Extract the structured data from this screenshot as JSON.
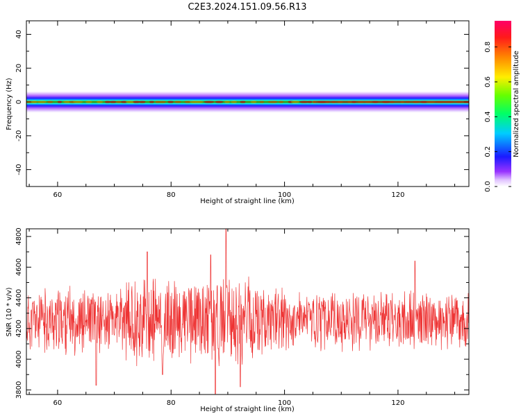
{
  "title": "C2E3.2024.151.09.56.R13",
  "colors": {
    "snr_line": "#ee3333",
    "axes": "#000000"
  },
  "chart_data": [
    {
      "type": "heatmap",
      "xlabel": "Height of straight line (km)",
      "ylabel": "Frequency (Hz)",
      "xlim": [
        54.5,
        132.5
      ],
      "ylim": [
        -50,
        48
      ],
      "x_ticks": [
        60,
        80,
        100,
        120
      ],
      "y_ticks": [
        -40,
        -20,
        0,
        20,
        40
      ],
      "band": {
        "center_hz": 0,
        "halfwidth_hz": 3,
        "peak_hz": 0
      },
      "colorbar": {
        "label": "Normalized spectral amplitude",
        "range": [
          0.0,
          0.95
        ],
        "ticks": [
          0.0,
          0.2,
          0.4,
          0.6,
          0.8
        ],
        "tick_labels": [
          "0.0",
          "0.2",
          "0.4",
          "0.6",
          "0.8"
        ],
        "colormap": "rainbow"
      }
    },
    {
      "type": "line",
      "xlabel": "Height of straight line (km)",
      "ylabel": "SNR (10 * v/v)",
      "xlim": [
        54.5,
        132.5
      ],
      "ylim": [
        3770,
        4850
      ],
      "x_ticks": [
        60,
        80,
        100,
        120
      ],
      "y_ticks": [
        3800,
        4000,
        4200,
        4400,
        4600,
        4800
      ],
      "series": [
        {
          "base_level": 4250,
          "noise_amplitude": 180,
          "spikes": [
            {
              "x": 66.8,
              "y": 3830
            },
            {
              "x": 75.8,
              "y": 4700
            },
            {
              "x": 78.5,
              "y": 3900
            },
            {
              "x": 87.0,
              "y": 4680
            },
            {
              "x": 87.8,
              "y": 3775
            },
            {
              "x": 89.7,
              "y": 4850
            },
            {
              "x": 92.2,
              "y": 3820
            },
            {
              "x": 123.0,
              "y": 4640
            }
          ]
        }
      ]
    }
  ]
}
